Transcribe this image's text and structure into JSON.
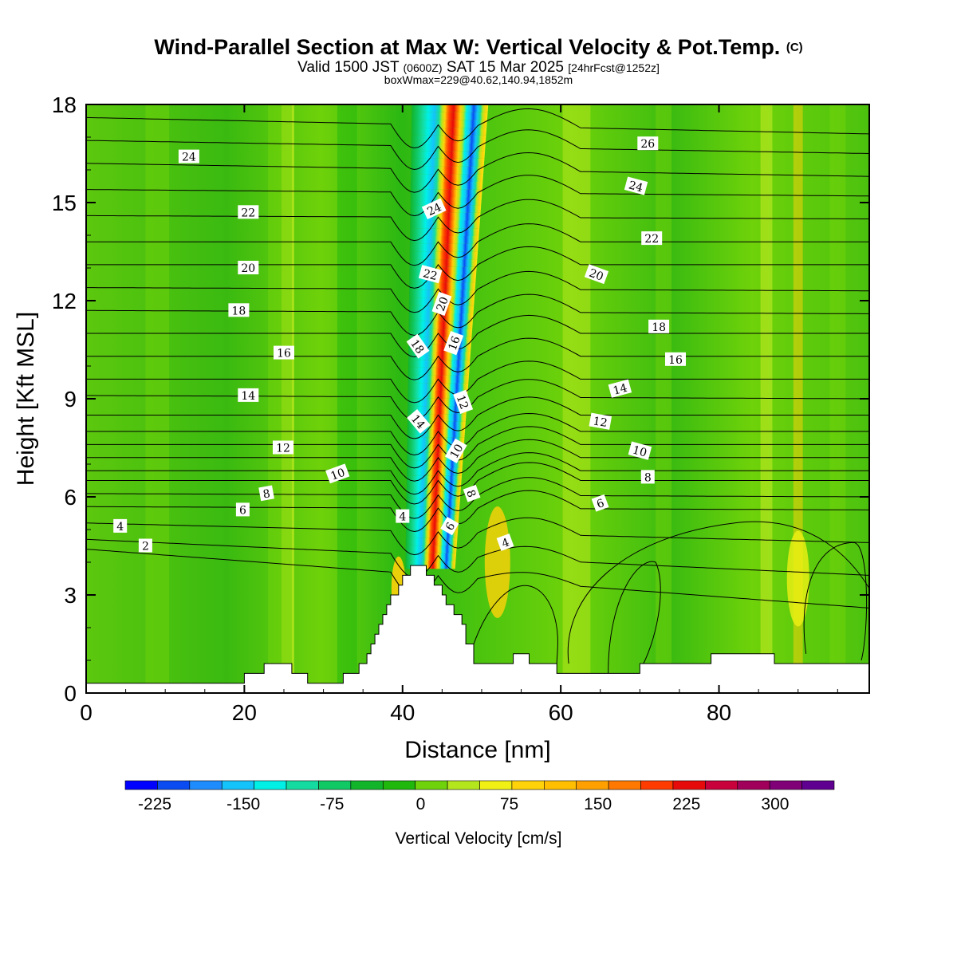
{
  "chart_data": {
    "type": "heatmap",
    "title_main": "Wind-Parallel Section at Max W: Vertical Velocity & Pot.Temp.",
    "title_copyright": "(C)",
    "subtitle_prefix": "Valid 1500 JST",
    "subtitle_utc": "(0600Z)",
    "subtitle_date": "SAT 15 Mar 2025",
    "subtitle_fcst": "[24hrFcst@1252z]",
    "subtitle2": "boxWmax=229@40.62,140.94,1852m",
    "xlabel": "Distance [nm]",
    "ylabel": "Height [Kft MSL]",
    "xlim": [
      0,
      99
    ],
    "ylim": [
      0,
      18
    ],
    "x_ticks": [
      "0",
      "20",
      "40",
      "60",
      "80"
    ],
    "y_ticks": [
      "0",
      "3",
      "6",
      "9",
      "12",
      "15",
      "18"
    ],
    "colorbar": {
      "title": "Vertical Velocity [cm/s]",
      "labels": [
        "-225",
        "-150",
        "-75",
        "0",
        "75",
        "150",
        "225",
        "300"
      ],
      "min": -250,
      "max": 350,
      "step": 25,
      "colors": [
        "#0000ff",
        "#0a4cf2",
        "#1e8cfc",
        "#14c3fa",
        "#00f0e6",
        "#14dca0",
        "#10c864",
        "#12b42a",
        "#20b80c",
        "#6fd20a",
        "#b4e61e",
        "#f0f014",
        "#ffd20a",
        "#ffbe00",
        "#ffa000",
        "#ff7800",
        "#ff3c00",
        "#e60a0a",
        "#c8003c",
        "#a0005a",
        "#800078",
        "#600090"
      ]
    },
    "updraft_axis": [
      {
        "height": 3.8,
        "distance": 43.5
      },
      {
        "height": 18.0,
        "distance": 46.0
      }
    ],
    "terrain": [
      [
        0,
        0.3
      ],
      [
        20,
        0.3
      ],
      [
        20,
        0.6
      ],
      [
        22.5,
        0.6
      ],
      [
        22.5,
        0.9
      ],
      [
        26,
        0.9
      ],
      [
        26,
        0.6
      ],
      [
        28,
        0.6
      ],
      [
        28,
        0.3
      ],
      [
        32.5,
        0.3
      ],
      [
        32.5,
        0.6
      ],
      [
        34.5,
        0.6
      ],
      [
        34.5,
        0.9
      ],
      [
        35.5,
        0.9
      ],
      [
        35.5,
        1.2
      ],
      [
        36,
        1.2
      ],
      [
        36,
        1.5
      ],
      [
        36.5,
        1.5
      ],
      [
        36.5,
        1.8
      ],
      [
        37,
        1.8
      ],
      [
        37,
        2.1
      ],
      [
        37.5,
        2.1
      ],
      [
        37.5,
        2.4
      ],
      [
        38,
        2.4
      ],
      [
        38,
        2.7
      ],
      [
        38.5,
        2.7
      ],
      [
        38.5,
        3.0
      ],
      [
        39.5,
        3.0
      ],
      [
        39.5,
        3.3
      ],
      [
        40,
        3.3
      ],
      [
        40,
        3.6
      ],
      [
        41,
        3.6
      ],
      [
        41,
        3.9
      ],
      [
        43,
        3.9
      ],
      [
        43,
        3.6
      ],
      [
        44,
        3.6
      ],
      [
        44,
        3.3
      ],
      [
        45,
        3.3
      ],
      [
        45,
        3.0
      ],
      [
        45.5,
        3.0
      ],
      [
        45.5,
        2.7
      ],
      [
        46.5,
        2.7
      ],
      [
        46.5,
        2.4
      ],
      [
        47.5,
        2.4
      ],
      [
        47.5,
        2.1
      ],
      [
        48,
        2.1
      ],
      [
        48,
        1.5
      ],
      [
        49,
        1.5
      ],
      [
        49,
        0.9
      ],
      [
        54,
        0.9
      ],
      [
        54,
        1.2
      ],
      [
        56,
        1.2
      ],
      [
        56,
        0.9
      ],
      [
        59.5,
        0.9
      ],
      [
        59.5,
        0.6
      ],
      [
        70,
        0.6
      ],
      [
        70,
        0.9
      ],
      [
        79,
        0.9
      ],
      [
        79,
        1.2
      ],
      [
        87,
        1.2
      ],
      [
        87,
        0.9
      ],
      [
        99,
        0.9
      ]
    ],
    "theta_contours": [
      {
        "label": "2",
        "left": 4.4,
        "right": 2.6,
        "dip": 0.6,
        "rise": 0.6
      },
      {
        "label": "4",
        "left": 4.7,
        "right": 3.6,
        "dip": 0.6,
        "rise": 0.8
      },
      {
        "label": "",
        "left": 5.2,
        "right": 4.6,
        "dip": 0.6,
        "rise": 1.0
      },
      {
        "label": "6",
        "left": 5.7,
        "right": 5.6,
        "dip": 0.6,
        "rise": 1.1
      },
      {
        "label": "",
        "left": 6.1,
        "right": 6.0,
        "dip": 0.6,
        "rise": 1.1
      },
      {
        "label": "8",
        "left": 6.5,
        "right": 6.5,
        "dip": 0.6,
        "rise": 1.1
      },
      {
        "label": "",
        "left": 6.8,
        "right": 6.8,
        "dip": 0.6,
        "rise": 1.1
      },
      {
        "label": "10",
        "left": 7.2,
        "right": 7.2,
        "dip": 0.6,
        "rise": 1.1
      },
      {
        "label": "",
        "left": 7.6,
        "right": 7.6,
        "dip": 0.6,
        "rise": 1.1
      },
      {
        "label": "12",
        "left": 8.0,
        "right": 8.0,
        "dip": 0.6,
        "rise": 1.1
      },
      {
        "label": "",
        "left": 8.5,
        "right": 8.5,
        "dip": 0.6,
        "rise": 1.1
      },
      {
        "label": "14",
        "left": 9.1,
        "right": 9.0,
        "dip": 0.6,
        "rise": 1.1
      },
      {
        "label": "",
        "left": 9.6,
        "right": 9.6,
        "dip": 0.6,
        "rise": 1.1
      },
      {
        "label": "16",
        "left": 10.3,
        "right": 10.3,
        "dip": 0.6,
        "rise": 1.1
      },
      {
        "label": "",
        "left": 11.0,
        "right": 11.0,
        "dip": 0.6,
        "rise": 1.1
      },
      {
        "label": "18",
        "left": 11.7,
        "right": 11.6,
        "dip": 0.6,
        "rise": 1.1
      },
      {
        "label": "",
        "left": 12.4,
        "right": 12.3,
        "dip": 0.6,
        "rise": 1.1
      },
      {
        "label": "20",
        "left": 13.1,
        "right": 13.1,
        "dip": 0.6,
        "rise": 1.1
      },
      {
        "label": "",
        "left": 13.8,
        "right": 13.8,
        "dip": 0.6,
        "rise": 1.1
      },
      {
        "label": "22",
        "left": 14.6,
        "right": 14.5,
        "dip": 0.6,
        "rise": 1.1
      },
      {
        "label": "",
        "left": 15.4,
        "right": 15.2,
        "dip": 0.6,
        "rise": 1.1
      },
      {
        "label": "24",
        "left": 16.2,
        "right": 15.8,
        "dip": 0.6,
        "rise": 1.1
      },
      {
        "label": "",
        "left": 16.9,
        "right": 16.5,
        "dip": 0.6,
        "rise": 1.1
      },
      {
        "label": "26",
        "left": 17.6,
        "right": 17.1,
        "dip": 0.6,
        "rise": 1.1
      }
    ],
    "contour_labels": [
      {
        "text": "2",
        "x": 7.5,
        "y": 4.5,
        "angle": 0
      },
      {
        "text": "4",
        "x": 4.3,
        "y": 5.1,
        "angle": 0
      },
      {
        "text": "4",
        "x": 40.0,
        "y": 5.4,
        "angle": 0
      },
      {
        "text": "4",
        "x": 53.0,
        "y": 4.6,
        "angle": -20
      },
      {
        "text": "6",
        "x": 19.8,
        "y": 5.6,
        "angle": 0
      },
      {
        "text": "6",
        "x": 65.0,
        "y": 5.8,
        "angle": -20
      },
      {
        "text": "6",
        "x": 46.0,
        "y": 5.1,
        "angle": -60
      },
      {
        "text": "8",
        "x": 22.8,
        "y": 6.1,
        "angle": -10
      },
      {
        "text": "8",
        "x": 48.7,
        "y": 6.1,
        "angle": 70
      },
      {
        "text": "8",
        "x": 71.0,
        "y": 6.6,
        "angle": 0
      },
      {
        "text": "10",
        "x": 31.8,
        "y": 6.7,
        "angle": -20
      },
      {
        "text": "10",
        "x": 46.8,
        "y": 7.4,
        "angle": -60
      },
      {
        "text": "10",
        "x": 70.0,
        "y": 7.4,
        "angle": 15
      },
      {
        "text": "12",
        "x": 24.9,
        "y": 7.5,
        "angle": 0
      },
      {
        "text": "12",
        "x": 47.6,
        "y": 8.9,
        "angle": 70
      },
      {
        "text": "12",
        "x": 65.0,
        "y": 8.3,
        "angle": 10
      },
      {
        "text": "14",
        "x": 20.5,
        "y": 9.1,
        "angle": 0
      },
      {
        "text": "14",
        "x": 42.0,
        "y": 8.3,
        "angle": 50
      },
      {
        "text": "14",
        "x": 67.5,
        "y": 9.3,
        "angle": -15
      },
      {
        "text": "16",
        "x": 25.0,
        "y": 10.4,
        "angle": 0
      },
      {
        "text": "16",
        "x": 46.5,
        "y": 10.7,
        "angle": -70
      },
      {
        "text": "16",
        "x": 74.5,
        "y": 10.2,
        "angle": 0
      },
      {
        "text": "18",
        "x": 19.3,
        "y": 11.7,
        "angle": 0
      },
      {
        "text": "18",
        "x": 41.9,
        "y": 10.6,
        "angle": 55
      },
      {
        "text": "18",
        "x": 72.4,
        "y": 11.2,
        "angle": 0
      },
      {
        "text": "20",
        "x": 20.5,
        "y": 13.0,
        "angle": 0
      },
      {
        "text": "20",
        "x": 45.0,
        "y": 11.9,
        "angle": -70
      },
      {
        "text": "20",
        "x": 64.5,
        "y": 12.8,
        "angle": 20
      },
      {
        "text": "22",
        "x": 20.5,
        "y": 14.7,
        "angle": 0
      },
      {
        "text": "22",
        "x": 43.5,
        "y": 12.8,
        "angle": 15
      },
      {
        "text": "22",
        "x": 71.5,
        "y": 13.9,
        "angle": 0
      },
      {
        "text": "24",
        "x": 13.0,
        "y": 16.4,
        "angle": 0
      },
      {
        "text": "24",
        "x": 44.0,
        "y": 14.8,
        "angle": -25
      },
      {
        "text": "24",
        "x": 69.5,
        "y": 15.5,
        "angle": 15
      },
      {
        "text": "26",
        "x": 71.0,
        "y": 16.8,
        "angle": 0
      }
    ]
  }
}
